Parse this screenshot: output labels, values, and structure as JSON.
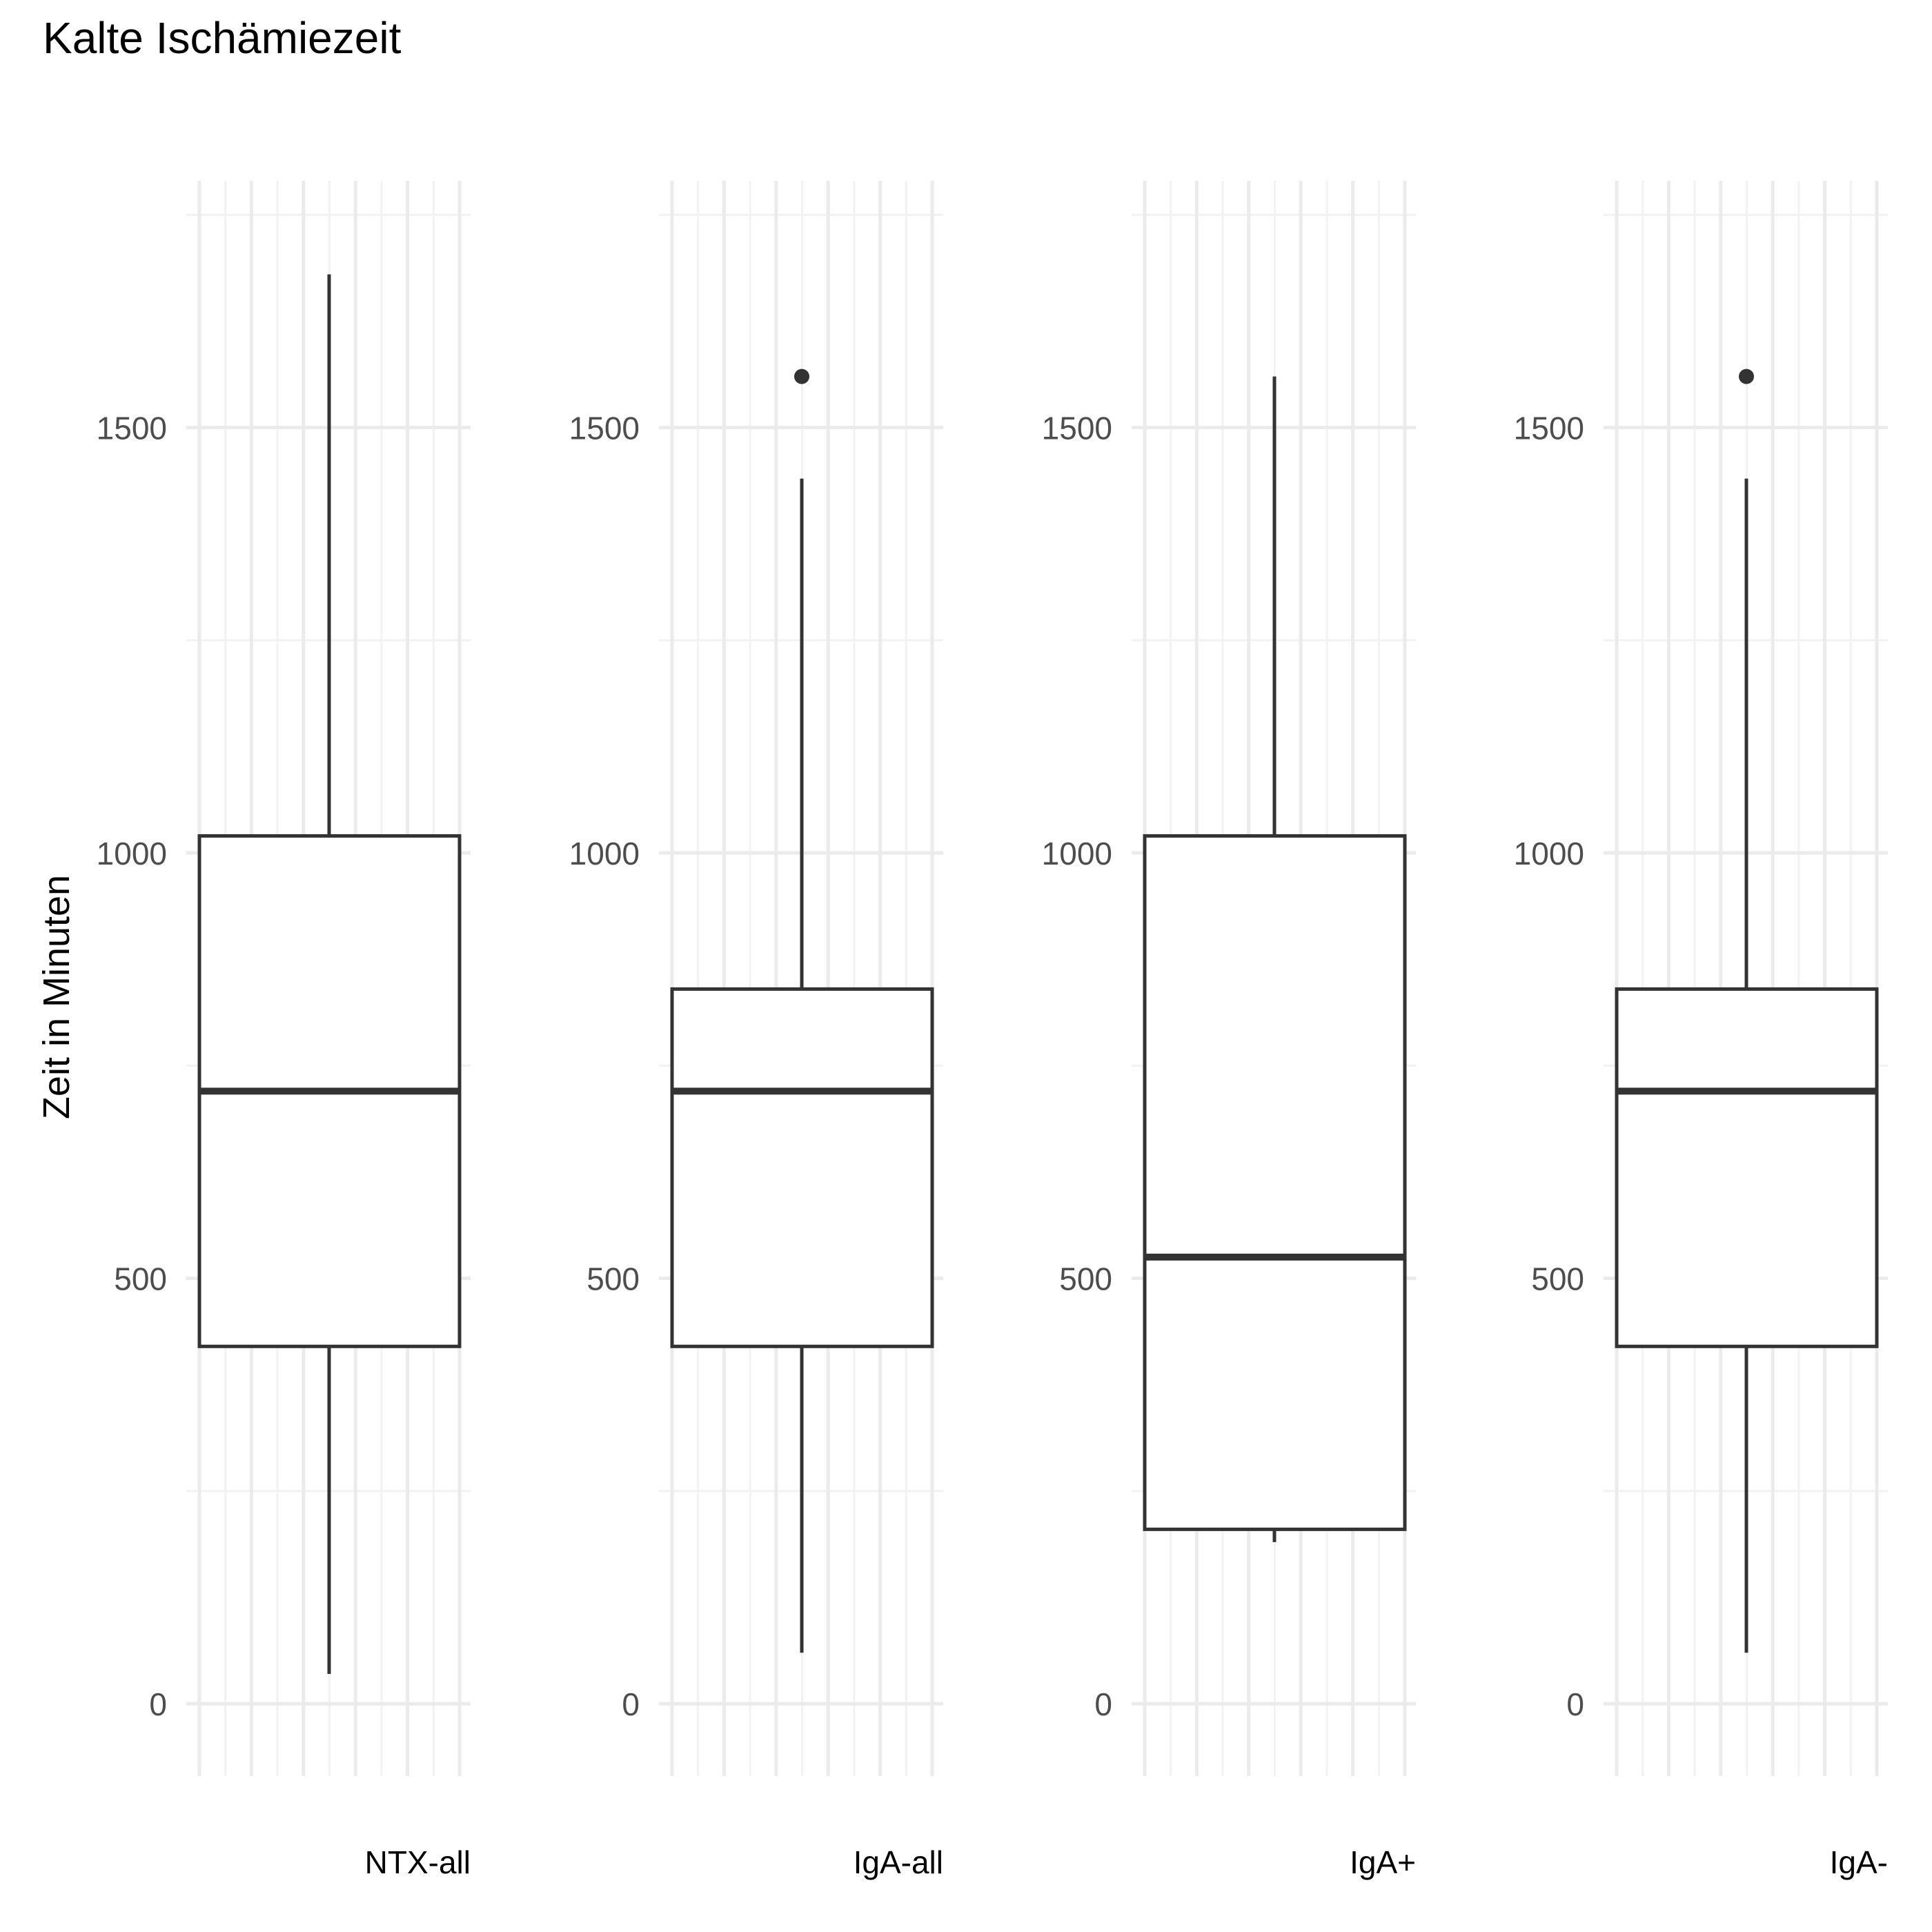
{
  "chart_data": {
    "type": "boxplot",
    "title": "Kalte Ischämiezeit",
    "ylabel": "Zeit in Minuten",
    "xlabel": "",
    "ylim": [
      -85,
      1790
    ],
    "y_ticks": [
      0,
      500,
      1000,
      1500
    ],
    "y_minor_ticks": [
      250,
      750,
      1250,
      1750
    ],
    "grid": true,
    "legend": "none",
    "colors": {
      "box_stroke": "#333333",
      "box_fill": "#ffffff",
      "grid_major": "#ebebeb",
      "grid_minor": "#f2f2f2",
      "tick_text": "#4d4d4d",
      "title_text": "#000000"
    },
    "panels": [
      {
        "label": "NTX-all",
        "whisker_low": 35,
        "q1": 420,
        "median": 720,
        "q3": 1020,
        "whisker_high": 1680,
        "outliers": []
      },
      {
        "label": "IgA-all",
        "whisker_low": 60,
        "q1": 420,
        "median": 720,
        "q3": 840,
        "whisker_high": 1440,
        "outliers": [
          1560
        ]
      },
      {
        "label": "IgA+",
        "whisker_low": 190,
        "q1": 205,
        "median": 525,
        "q3": 1020,
        "whisker_high": 1560,
        "outliers": []
      },
      {
        "label": "IgA-",
        "whisker_low": 60,
        "q1": 420,
        "median": 720,
        "q3": 840,
        "whisker_high": 1440,
        "outliers": [
          1560
        ]
      }
    ]
  }
}
